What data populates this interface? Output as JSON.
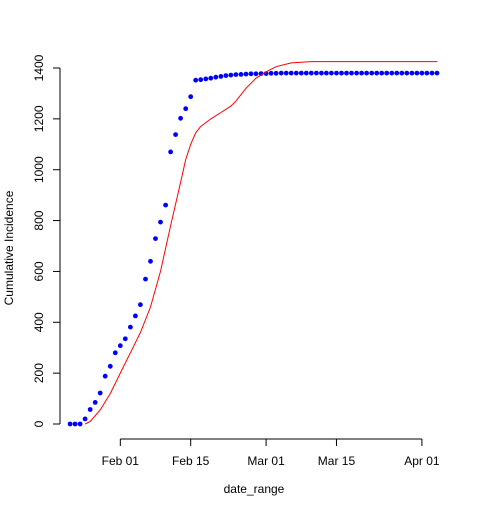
{
  "chart_data": {
    "type": "scatter",
    "xlabel": "date_range",
    "ylabel": "Cumulative Incidence",
    "x_is_date": true,
    "xlim": [
      "2020-01-20",
      "2020-04-04"
    ],
    "ylim": [
      0,
      1400
    ],
    "x_ticks": [
      {
        "date": "2020-02-01",
        "label": "Feb 01"
      },
      {
        "date": "2020-02-15",
        "label": "Feb 15"
      },
      {
        "date": "2020-03-01",
        "label": "Mar 01"
      },
      {
        "date": "2020-03-15",
        "label": "Mar 15"
      },
      {
        "date": "2020-04-01",
        "label": "Apr 01"
      }
    ],
    "y_ticks": [
      0,
      200,
      400,
      600,
      800,
      1000,
      1200,
      1400
    ],
    "grid": false,
    "series": [
      {
        "kind": "points",
        "color": "#0000ff",
        "x_start": "2020-01-22",
        "values": [
          0,
          0,
          0,
          20,
          57,
          85,
          122,
          188,
          227,
          280,
          308,
          335,
          381,
          425,
          469,
          570,
          640,
          729,
          794,
          861,
          1070,
          1138,
          1202,
          1240,
          1287,
          1352,
          1354,
          1357,
          1360,
          1364,
          1367,
          1370,
          1372,
          1374,
          1375,
          1376,
          1377,
          1377,
          1378,
          1378,
          1379,
          1379,
          1380,
          1380,
          1380,
          1380,
          1380,
          1380,
          1380,
          1380,
          1380,
          1380,
          1380,
          1380,
          1380,
          1380,
          1380,
          1380,
          1380,
          1380,
          1380,
          1380,
          1380,
          1380,
          1380,
          1380,
          1380,
          1380,
          1380,
          1380,
          1380,
          1380,
          1380,
          1380
        ]
      },
      {
        "kind": "line",
        "color": "#ff0000",
        "points": [
          [
            "2020-01-25",
            0
          ],
          [
            "2020-01-26",
            10
          ],
          [
            "2020-01-28",
            55
          ],
          [
            "2020-01-30",
            120
          ],
          [
            "2020-02-01",
            200
          ],
          [
            "2020-02-03",
            280
          ],
          [
            "2020-02-05",
            360
          ],
          [
            "2020-02-07",
            460
          ],
          [
            "2020-02-09",
            600
          ],
          [
            "2020-02-11",
            780
          ],
          [
            "2020-02-13",
            950
          ],
          [
            "2020-02-14",
            1040
          ],
          [
            "2020-02-15",
            1100
          ],
          [
            "2020-02-16",
            1145
          ],
          [
            "2020-02-17",
            1170
          ],
          [
            "2020-02-19",
            1200
          ],
          [
            "2020-02-21",
            1225
          ],
          [
            "2020-02-23",
            1250
          ],
          [
            "2020-02-24",
            1270
          ],
          [
            "2020-02-26",
            1320
          ],
          [
            "2020-02-28",
            1360
          ],
          [
            "2020-03-01",
            1385
          ],
          [
            "2020-03-03",
            1405
          ],
          [
            "2020-03-06",
            1420
          ],
          [
            "2020-03-10",
            1425
          ],
          [
            "2020-03-20",
            1425
          ],
          [
            "2020-04-01",
            1425
          ],
          [
            "2020-04-04",
            1425
          ]
        ]
      }
    ]
  }
}
